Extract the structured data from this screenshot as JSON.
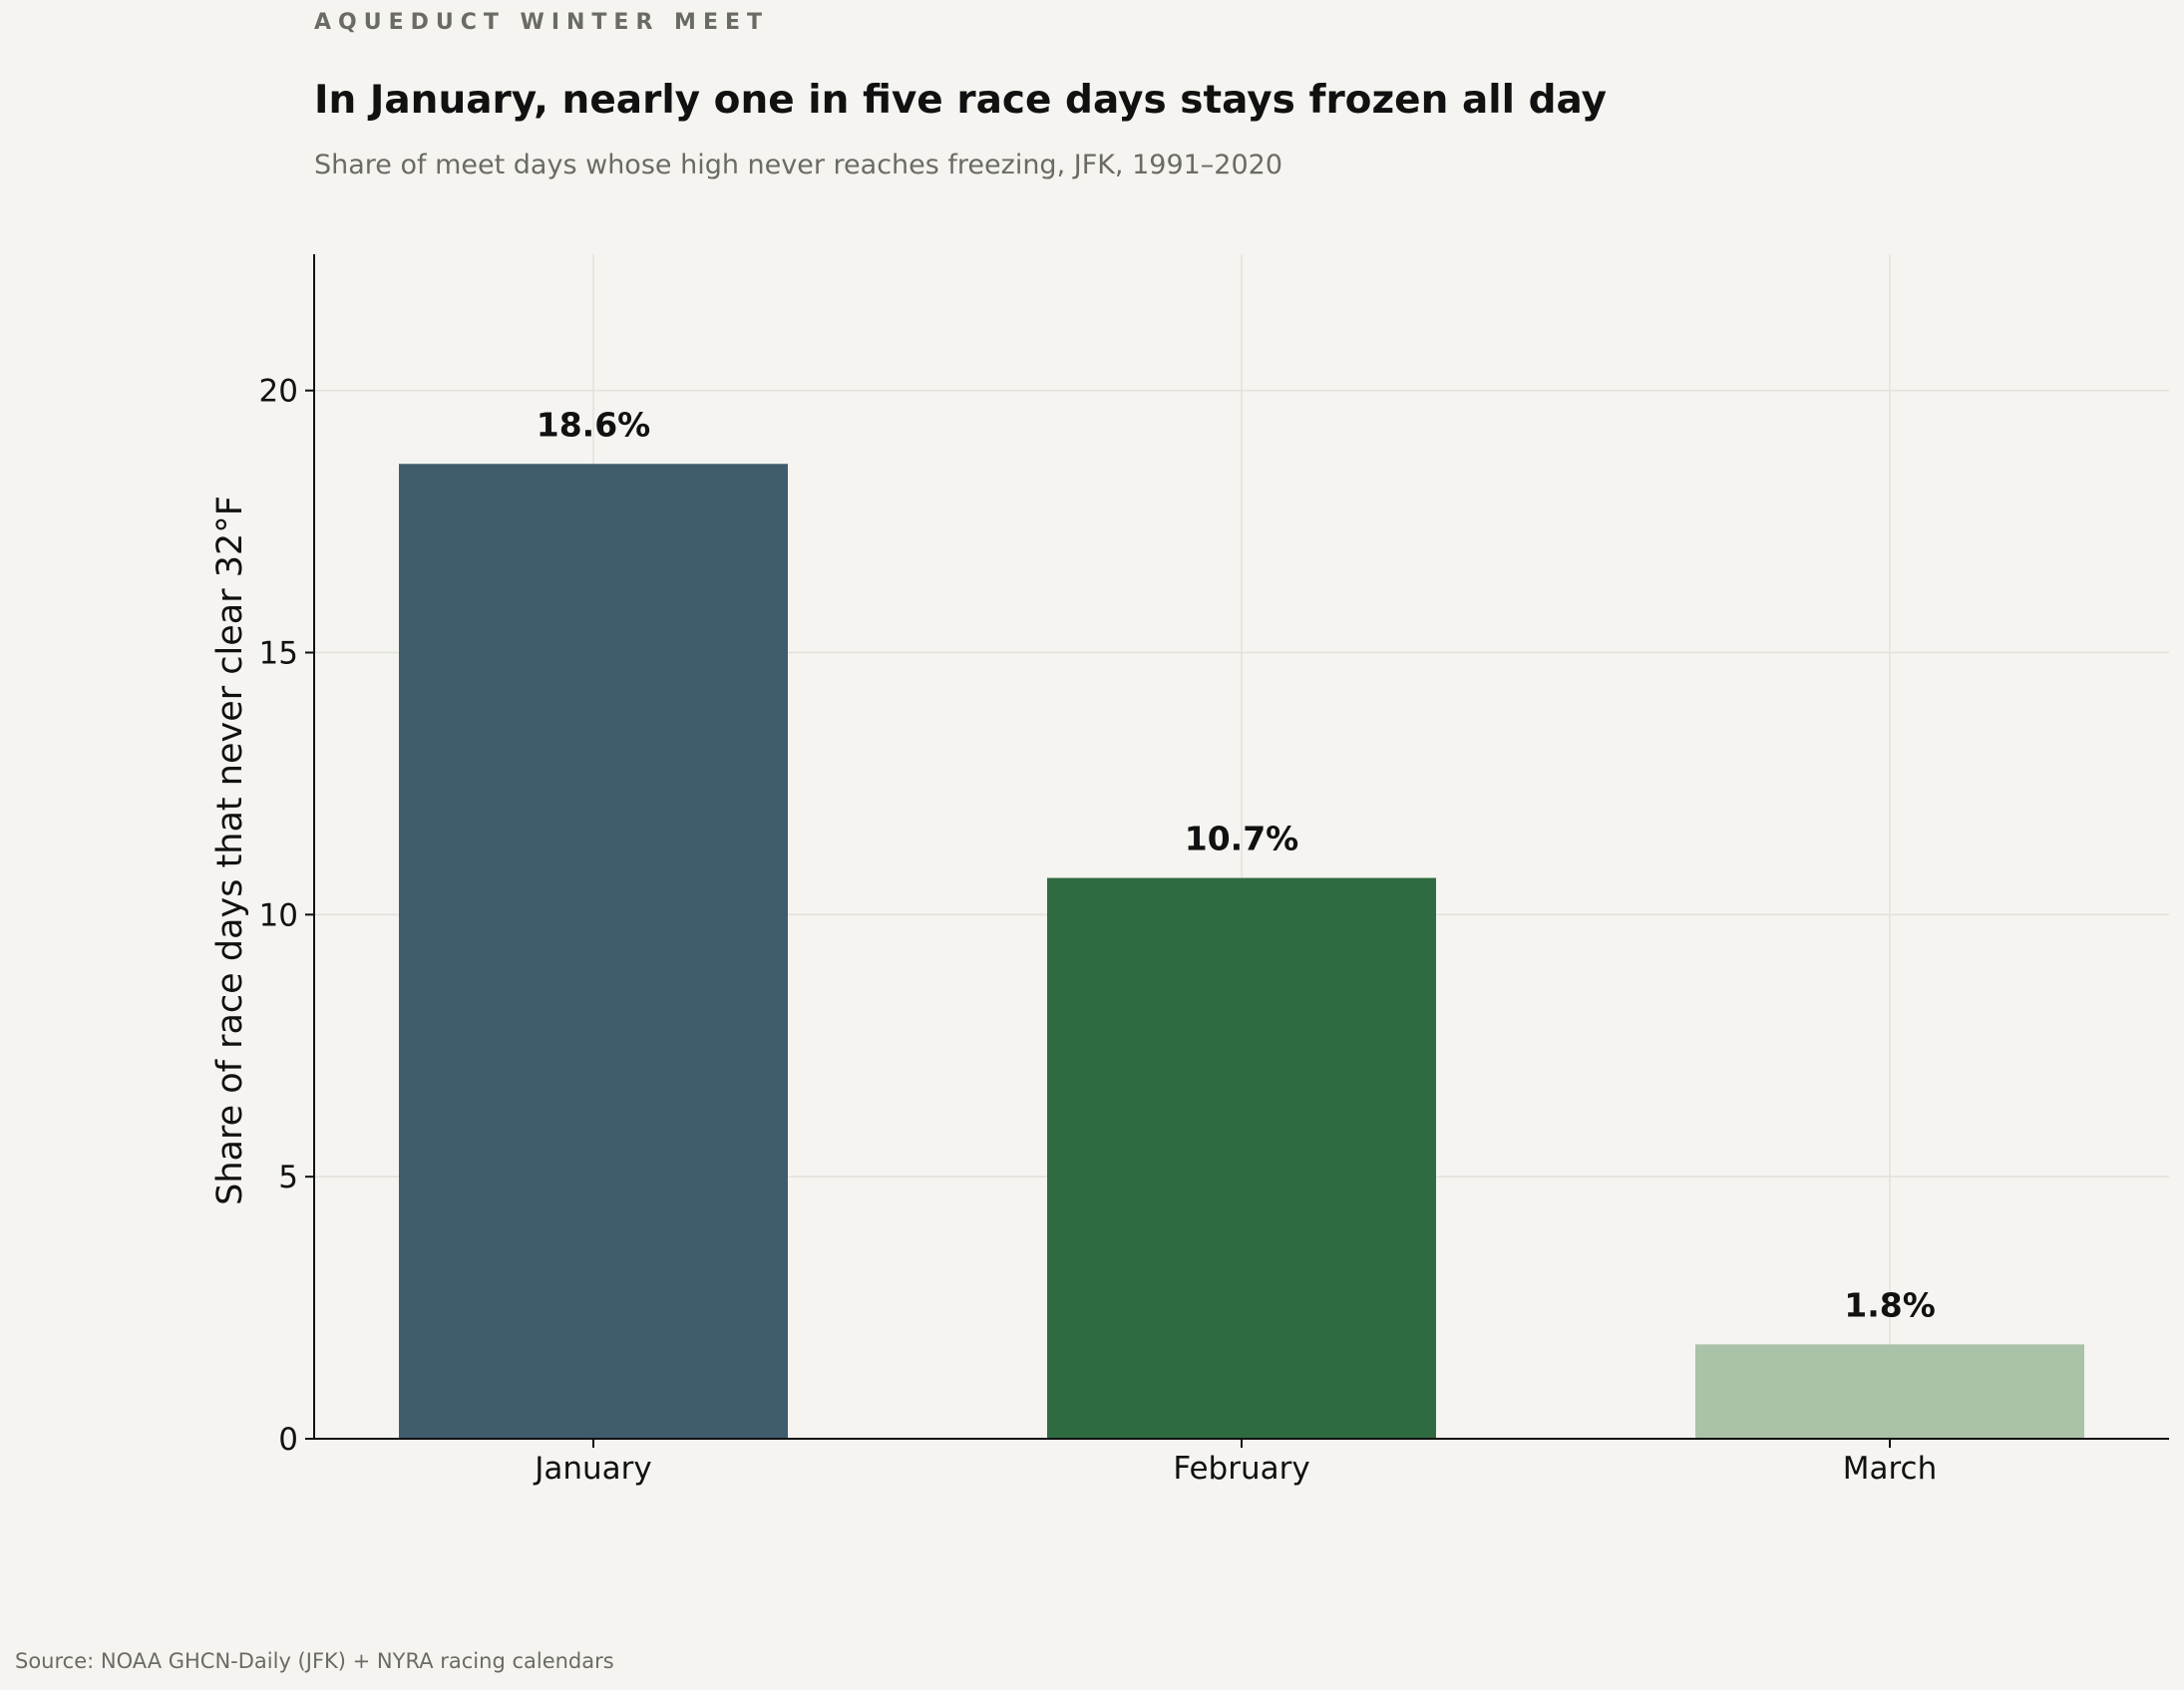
{
  "header": {
    "kicker": "AQUEDUCT WINTER MEET",
    "title": "In January, nearly one in five race days stays frozen all day",
    "subtitle": "Share of meet days whose high never reaches freezing, JFK, 1991–2020"
  },
  "footer": {
    "source": "Source: NOAA GHCN-Daily (JFK) + NYRA racing calendars"
  },
  "chart_data": {
    "type": "bar",
    "title": "In January, nearly one in five race days stays frozen all day",
    "subtitle": "Share of meet days whose high never reaches freezing, JFK, 1991–2020",
    "xlabel": "",
    "ylabel": "Share of race days that never clear 32°F",
    "categories": [
      "January",
      "February",
      "March"
    ],
    "values": [
      18.6,
      10.7,
      1.8
    ],
    "data_labels": [
      "18.6%",
      "10.7%",
      "1.8%"
    ],
    "colors": [
      "#3f5c6d",
      "#2f6b41",
      "#aac2a8"
    ],
    "ylim": [
      0,
      22.6
    ],
    "yticks": [
      0,
      5,
      10,
      15,
      20
    ],
    "grid": true,
    "legend": "none"
  }
}
